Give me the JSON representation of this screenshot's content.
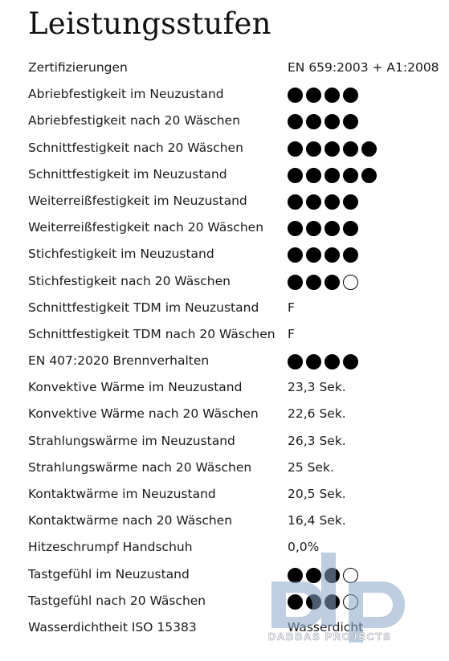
{
  "title": "Leistungsstufen",
  "rows": [
    {
      "label": "Zertifizierungen",
      "value": "EN 659:2003 + A1:2008"
    },
    {
      "label": "Abriebfestigkeit im Neuzustand",
      "rating": {
        "filled": 4,
        "total": 4
      }
    },
    {
      "label": "Abriebfestigkeit nach 20 Wäschen",
      "rating": {
        "filled": 4,
        "total": 4
      }
    },
    {
      "label": "Schnittfestigkeit nach 20 Wäschen",
      "rating": {
        "filled": 5,
        "total": 5
      }
    },
    {
      "label": "Schnittfestigkeit im Neuzustand",
      "rating": {
        "filled": 5,
        "total": 5
      }
    },
    {
      "label": "Weiterreißfestigkeit im Neuzustand",
      "rating": {
        "filled": 4,
        "total": 4
      }
    },
    {
      "label": "Weiterreißfestigkeit nach 20 Wäschen",
      "rating": {
        "filled": 4,
        "total": 4
      }
    },
    {
      "label": "Stichfestigkeit im Neuzustand",
      "rating": {
        "filled": 4,
        "total": 4
      }
    },
    {
      "label": "Stichfestigkeit nach 20 Wäschen",
      "rating": {
        "filled": 3,
        "total": 4
      }
    },
    {
      "label": "Schnittfestigkeit TDM im Neuzustand",
      "value": "F"
    },
    {
      "label": "Schnittfestigkeit TDM nach 20 Wäschen",
      "value": "F"
    },
    {
      "label": "EN 407:2020 Brennverhalten",
      "rating": {
        "filled": 4,
        "total": 4
      }
    },
    {
      "label": "Konvektive Wärme im Neuzustand",
      "value": "23,3 Sek."
    },
    {
      "label": "Konvektive Wärme nach 20 Wäschen",
      "value": "22,6 Sek."
    },
    {
      "label": "Strahlungswärme im Neuzustand",
      "value": "26,3 Sek."
    },
    {
      "label": "Strahlungswärme nach 20 Wäschen",
      "value": "25 Sek."
    },
    {
      "label": "Kontaktwärme im Neuzustand",
      "value": "20,5 Sek."
    },
    {
      "label": "Kontaktwärme nach 20 Wäschen",
      "value": "16,4 Sek."
    },
    {
      "label": "Hitzeschrumpf Handschuh",
      "value": "0,0%"
    },
    {
      "label": "Tastgefühl im Neuzustand",
      "rating": {
        "filled": 3,
        "total": 4
      }
    },
    {
      "label": "Tastgefühl nach 20 Wäschen",
      "rating": {
        "filled": 3,
        "total": 4
      }
    },
    {
      "label": "Wasserdichtheit ISO 15383",
      "value": "Wasserdicht"
    }
  ],
  "watermark": {
    "logo_text": "dp",
    "text": "DABBAS PROJECTS"
  }
}
